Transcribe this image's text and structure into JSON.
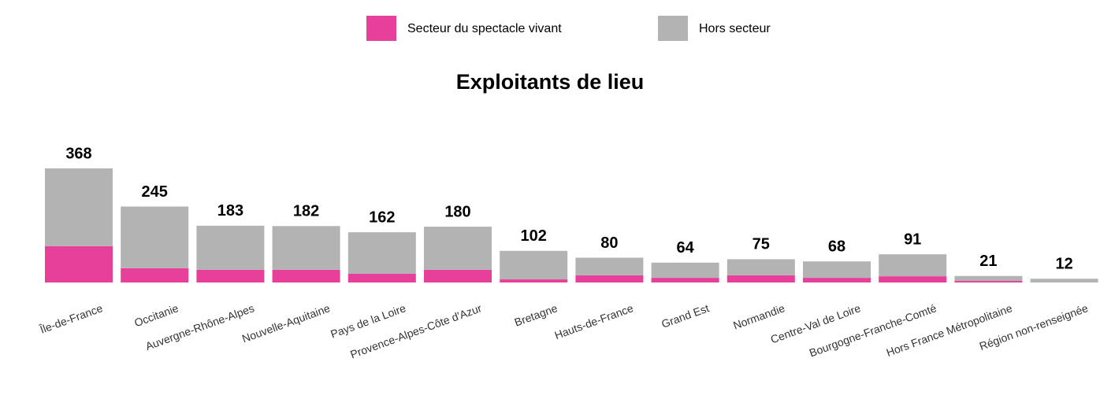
{
  "chart_data": {
    "type": "stacked_bar",
    "title": "Exploitants de lieu",
    "categories": [
      "Île-de-France",
      "Occitanie",
      "Auvergne-Rhône-Alpes",
      "Nouvelle-Aquitaine",
      "Pays de la Loire",
      "Provence-Alpes-Côte d'Azur",
      "Bretagne",
      "Hauts-de-France",
      "Grand Est",
      "Normandie",
      "Centre-Val de Loire",
      "Bourgogne-Franche-Comté",
      "Hors France Métropolitaine",
      "Région non-renseignée"
    ],
    "series": [
      {
        "name": "Secteur du spectacle vivant",
        "color": "#e6409a",
        "values": [
          117,
          46,
          41,
          41,
          28,
          41,
          10,
          23,
          15,
          23,
          15,
          20,
          5,
          0
        ]
      },
      {
        "name": "Hors secteur",
        "color": "#b3b3b3",
        "values": [
          251,
          199,
          142,
          141,
          134,
          139,
          92,
          57,
          49,
          52,
          53,
          71,
          16,
          12
        ]
      }
    ],
    "totals": [
      368,
      245,
      183,
      182,
      162,
      180,
      102,
      80,
      64,
      75,
      68,
      91,
      21,
      12
    ],
    "legend": "top"
  }
}
